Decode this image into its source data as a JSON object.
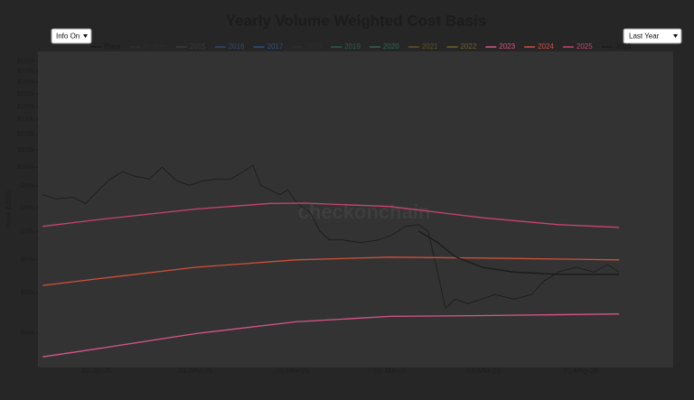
{
  "controls": {
    "info": "Info On",
    "range": "Last Year"
  },
  "chart_data": {
    "type": "line",
    "title": "Yearly Volume Weighted Cost Basis",
    "watermark": "checkonchain",
    "ylabel": "Price [USD]",
    "log_y": true,
    "grid": false,
    "xlim": [
      "2025-05-25",
      "2026-06-28"
    ],
    "xticks": [
      {
        "value": "2025-07-01",
        "label": "01-Jul-25"
      },
      {
        "value": "2025-09-01",
        "label": "01-Sep-25"
      },
      {
        "value": "2025-11-01",
        "label": "01-Nov-25"
      },
      {
        "value": "2026-01-01",
        "label": "01-Jan-26"
      },
      {
        "value": "2026-03-01",
        "label": "01-Mar-26"
      },
      {
        "value": "2026-05-01",
        "label": "01-May-26"
      }
    ],
    "ylim": [
      33000,
      190000
    ],
    "yticks": [
      {
        "value": 40000,
        "label": "$40k"
      },
      {
        "value": 50000,
        "label": "$50k"
      },
      {
        "value": 60000,
        "label": "$60k"
      },
      {
        "value": 70000,
        "label": "$70k"
      },
      {
        "value": 80000,
        "label": "$80k"
      },
      {
        "value": 90000,
        "label": "$90k"
      },
      {
        "value": 100000,
        "label": "$100k"
      },
      {
        "value": 110000,
        "label": "$110k"
      },
      {
        "value": 120000,
        "label": "$120k"
      },
      {
        "value": 130000,
        "label": "$130k"
      },
      {
        "value": 140000,
        "label": "$140k"
      },
      {
        "value": 150000,
        "label": "$150k"
      },
      {
        "value": 160000,
        "label": "$160k"
      },
      {
        "value": 170000,
        "label": "$170k"
      },
      {
        "value": 180000,
        "label": "$180k"
      }
    ],
    "series": [
      {
        "name": "Price",
        "color": "#1a1a1a",
        "x": [
          "2025-05-28",
          "2025-06-05",
          "2025-06-16",
          "2025-06-24",
          "2025-07-01",
          "2025-07-08",
          "2025-07-17",
          "2025-07-25",
          "2025-08-03",
          "2025-08-11",
          "2025-08-20",
          "2025-08-28",
          "2025-09-06",
          "2025-09-14",
          "2025-09-23",
          "2025-10-01",
          "2025-10-07",
          "2025-10-12",
          "2025-10-18",
          "2025-10-24",
          "2025-10-29",
          "2025-11-04",
          "2025-11-12",
          "2025-11-18",
          "2025-11-24",
          "2025-12-02",
          "2025-12-14",
          "2025-12-25",
          "2026-01-02",
          "2026-01-11",
          "2026-01-19",
          "2026-01-25",
          "2026-01-31",
          "2026-02-05",
          "2026-02-11",
          "2026-02-19",
          "2026-02-28",
          "2026-03-08",
          "2026-03-20",
          "2026-03-31",
          "2026-04-08",
          "2026-04-17",
          "2026-04-28",
          "2026-05-09",
          "2026-05-18",
          "2026-05-25"
        ],
        "values": [
          86000,
          83900,
          84700,
          81800,
          87300,
          92800,
          97600,
          95200,
          93700,
          100100,
          92800,
          90500,
          92800,
          93700,
          93700,
          97600,
          101100,
          90500,
          88200,
          86000,
          88200,
          81800,
          77800,
          70300,
          66900,
          66900,
          65900,
          66900,
          68600,
          72100,
          72800,
          70300,
          56000,
          45800,
          48200,
          47000,
          48200,
          49400,
          48200,
          49400,
          53300,
          56000,
          57500,
          56000,
          58300,
          56000
        ]
      },
      {
        "name": "All-time",
        "color": "#2e2e2e",
        "x": [],
        "values": []
      },
      {
        "name": "2015",
        "color": "#3a3a3a",
        "x": [],
        "values": []
      },
      {
        "name": "2016",
        "color": "#34466e",
        "x": [],
        "values": []
      },
      {
        "name": "2017",
        "color": "#2f4f80",
        "x": [],
        "values": []
      },
      {
        "name": "2018",
        "color": "#2e2e2e",
        "x": [],
        "values": []
      },
      {
        "name": "2019",
        "color": "#2e5a4c",
        "x": [],
        "values": []
      },
      {
        "name": "2020",
        "color": "#2f6550",
        "x": [],
        "values": []
      },
      {
        "name": "2021",
        "color": "#5e5328",
        "x": [],
        "values": []
      },
      {
        "name": "2022",
        "color": "#6e6224",
        "x": [],
        "values": []
      },
      {
        "name": "2023",
        "color": "#d7558a",
        "x": [
          "2025-05-28",
          "2025-07-01",
          "2025-09-01",
          "2025-11-03",
          "2026-01-01",
          "2026-03-01",
          "2026-05-25"
        ],
        "values": [
          35000,
          36600,
          39800,
          42500,
          43800,
          44000,
          44400
        ]
      },
      {
        "name": "2024",
        "color": "#d0503c",
        "x": [
          "2025-05-28",
          "2025-07-01",
          "2025-09-01",
          "2025-11-03",
          "2026-01-01",
          "2026-03-01",
          "2026-05-25"
        ],
        "values": [
          52000,
          53900,
          57500,
          59900,
          60800,
          60500,
          59900
        ]
      },
      {
        "name": "2025",
        "color": "#c9446e",
        "x": [
          "2025-05-28",
          "2025-07-01",
          "2025-09-01",
          "2025-10-18",
          "2025-11-09",
          "2026-01-01",
          "2026-03-01",
          "2026-04-17",
          "2026-05-25"
        ],
        "values": [
          72100,
          74800,
          79400,
          81900,
          82000,
          80500,
          75600,
          72800,
          71700
        ]
      },
      {
        "name": "2026",
        "color": "#1a1a1a",
        "x": [
          "2026-01-19",
          "2026-01-31",
          "2026-02-11",
          "2026-02-28",
          "2026-03-20",
          "2026-04-17",
          "2026-05-25"
        ],
        "values": [
          70300,
          66000,
          61000,
          57500,
          56000,
          55300,
          55300
        ]
      }
    ]
  }
}
